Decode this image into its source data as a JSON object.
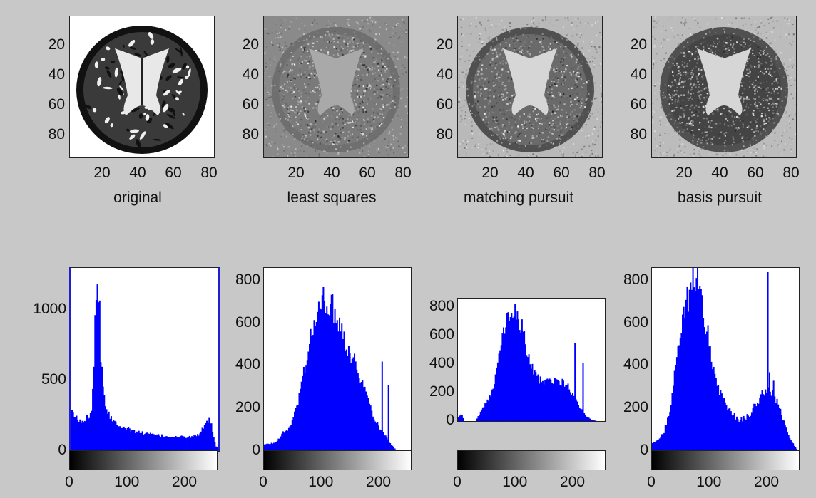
{
  "colors": {
    "background": "#c8c8c8",
    "bar": "#0000ff",
    "axis_accent": "#1f1fd0"
  },
  "images": [
    {
      "caption": "original",
      "kind": "original",
      "yticks": [
        "20",
        "40",
        "60",
        "80"
      ],
      "xticks": [
        "20",
        "40",
        "60",
        "80"
      ]
    },
    {
      "caption": "least squares",
      "kind": "least_squares",
      "yticks": [
        "20",
        "40",
        "60",
        "80"
      ],
      "xticks": [
        "20",
        "40",
        "60",
        "80"
      ]
    },
    {
      "caption": "matching pursuit",
      "kind": "matching_pursuit",
      "yticks": [
        "20",
        "40",
        "60",
        "80"
      ],
      "xticks": [
        "20",
        "40",
        "60",
        "80"
      ]
    },
    {
      "caption": "basis pursuit",
      "kind": "basis_pursuit",
      "yticks": [
        "20",
        "40",
        "60",
        "80"
      ],
      "xticks": [
        "20",
        "40",
        "60",
        "80"
      ]
    }
  ],
  "chart_data": [
    {
      "type": "bar",
      "xlim": [
        0,
        255
      ],
      "ylim": [
        0,
        1300
      ],
      "yticks": [
        "0",
        "500",
        "1000"
      ],
      "xticks": [
        "0",
        "100",
        "200"
      ],
      "colorbar": true,
      "profile": [
        [
          0,
          270
        ],
        [
          5,
          250
        ],
        [
          10,
          220
        ],
        [
          15,
          205
        ],
        [
          20,
          210
        ],
        [
          25,
          230
        ],
        [
          30,
          260
        ],
        [
          35,
          330
        ],
        [
          38,
          600
        ],
        [
          40,
          1000
        ],
        [
          42,
          1180
        ],
        [
          45,
          1200
        ],
        [
          48,
          1000
        ],
        [
          50,
          700
        ],
        [
          55,
          420
        ],
        [
          60,
          300
        ],
        [
          70,
          220
        ],
        [
          80,
          190
        ],
        [
          100,
          150
        ],
        [
          120,
          130
        ],
        [
          150,
          110
        ],
        [
          180,
          100
        ],
        [
          200,
          100
        ],
        [
          210,
          100
        ],
        [
          220,
          120
        ],
        [
          230,
          170
        ],
        [
          235,
          210
        ],
        [
          238,
          215
        ],
        [
          242,
          180
        ],
        [
          247,
          70
        ],
        [
          250,
          30
        ],
        [
          255,
          30
        ]
      ],
      "spikes": []
    },
    {
      "type": "bar",
      "xlim": [
        0,
        255
      ],
      "ylim": [
        0,
        860
      ],
      "yticks": [
        "0",
        "200",
        "400",
        "600",
        "800"
      ],
      "xticks": [
        "0",
        "100",
        "200"
      ],
      "colorbar": true,
      "profile": [
        [
          0,
          30
        ],
        [
          10,
          35
        ],
        [
          20,
          40
        ],
        [
          30,
          80
        ],
        [
          40,
          100
        ],
        [
          50,
          150
        ],
        [
          60,
          260
        ],
        [
          70,
          400
        ],
        [
          80,
          530
        ],
        [
          90,
          630
        ],
        [
          100,
          700
        ],
        [
          110,
          710
        ],
        [
          120,
          660
        ],
        [
          130,
          610
        ],
        [
          140,
          520
        ],
        [
          150,
          450
        ],
        [
          160,
          400
        ],
        [
          170,
          320
        ],
        [
          180,
          240
        ],
        [
          190,
          160
        ],
        [
          200,
          110
        ],
        [
          210,
          70
        ],
        [
          220,
          30
        ],
        [
          230,
          0
        ],
        [
          255,
          0
        ]
      ],
      "spikes": [
        [
          204,
          420
        ],
        [
          215,
          310
        ]
      ]
    },
    {
      "type": "bar",
      "xlim": [
        0,
        255
      ],
      "ylim": [
        0,
        860
      ],
      "yticks": [
        "0",
        "200",
        "400",
        "600",
        "800"
      ],
      "xticks": [
        "0",
        "100",
        "200"
      ],
      "colorbar": true,
      "profile": [
        [
          0,
          30
        ],
        [
          5,
          50
        ],
        [
          10,
          0
        ],
        [
          30,
          0
        ],
        [
          40,
          80
        ],
        [
          50,
          140
        ],
        [
          60,
          220
        ],
        [
          70,
          450
        ],
        [
          80,
          650
        ],
        [
          90,
          760
        ],
        [
          95,
          780
        ],
        [
          100,
          760
        ],
        [
          110,
          660
        ],
        [
          120,
          450
        ],
        [
          130,
          350
        ],
        [
          140,
          290
        ],
        [
          150,
          270
        ],
        [
          160,
          280
        ],
        [
          170,
          280
        ],
        [
          180,
          270
        ],
        [
          190,
          240
        ],
        [
          200,
          170
        ],
        [
          210,
          100
        ],
        [
          220,
          40
        ],
        [
          230,
          10
        ],
        [
          240,
          0
        ],
        [
          255,
          0
        ]
      ],
      "spikes": [
        [
          202,
          550
        ],
        [
          216,
          410
        ]
      ]
    },
    {
      "type": "bar",
      "xlim": [
        0,
        255
      ],
      "ylim": [
        0,
        860
      ],
      "yticks": [
        "0",
        "200",
        "400",
        "600",
        "800"
      ],
      "xticks": [
        "0",
        "100",
        "200"
      ],
      "colorbar": true,
      "profile": [
        [
          0,
          40
        ],
        [
          10,
          50
        ],
        [
          20,
          90
        ],
        [
          30,
          200
        ],
        [
          40,
          380
        ],
        [
          50,
          560
        ],
        [
          60,
          700
        ],
        [
          70,
          790
        ],
        [
          75,
          830
        ],
        [
          80,
          800
        ],
        [
          90,
          640
        ],
        [
          100,
          480
        ],
        [
          110,
          330
        ],
        [
          120,
          250
        ],
        [
          130,
          200
        ],
        [
          140,
          170
        ],
        [
          150,
          150
        ],
        [
          160,
          150
        ],
        [
          170,
          180
        ],
        [
          180,
          220
        ],
        [
          190,
          270
        ],
        [
          200,
          290
        ],
        [
          210,
          270
        ],
        [
          220,
          200
        ],
        [
          230,
          120
        ],
        [
          240,
          50
        ],
        [
          250,
          10
        ],
        [
          255,
          0
        ]
      ],
      "spikes": [
        [
          200,
          840
        ],
        [
          203,
          370
        ],
        [
          210,
          330
        ]
      ]
    }
  ]
}
